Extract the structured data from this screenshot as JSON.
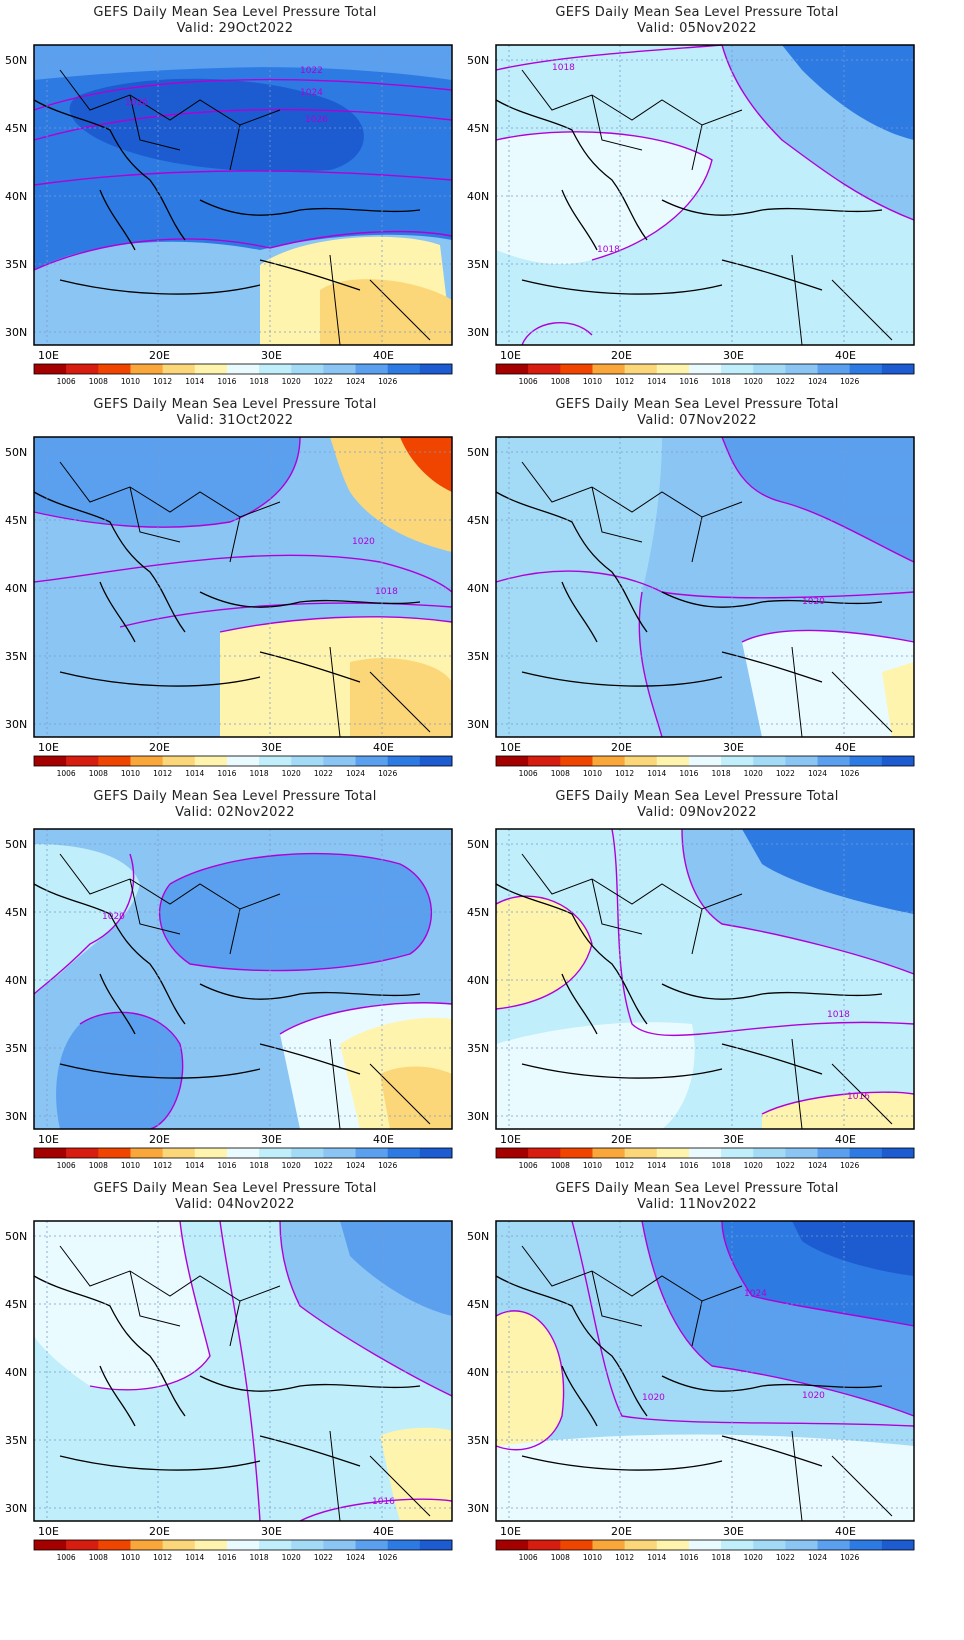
{
  "lat_labels": [
    "50N",
    "45N",
    "40N",
    "35N",
    "30N"
  ],
  "lon_labels": [
    "10E",
    "20E",
    "30E",
    "40E"
  ],
  "colorbar": {
    "ticks": [
      "1006",
      "1008",
      "1010",
      "1012",
      "1014",
      "1016",
      "1018",
      "1020",
      "1022",
      "1024",
      "1026"
    ],
    "colors": [
      "#a50000",
      "#d71c10",
      "#ef4500",
      "#f9a73b",
      "#fbd77a",
      "#fff4ad",
      "#eafbff",
      "#c0eefa",
      "#a3dbf6",
      "#8ac5f4",
      "#5aa0ef",
      "#2d7ae3",
      "#1c5cd0"
    ]
  },
  "contour_color": "#b000d8",
  "panels": [
    {
      "title": "GEFS Daily Mean Sea Level Pressure Total",
      "valid": "Valid: 29Oct2022",
      "contour_labels": [
        "1022",
        "1024",
        "1026",
        "1026"
      ],
      "background": "#2d7ae3"
    },
    {
      "title": "GEFS Daily Mean Sea Level Pressure Total",
      "valid": "Valid: 05Nov2022",
      "contour_labels": [
        "1018",
        "1018"
      ],
      "background": "#c0eefa"
    },
    {
      "title": "GEFS Daily Mean Sea Level Pressure Total",
      "valid": "Valid: 31Oct2022",
      "contour_labels": [
        "1020",
        "1018"
      ],
      "background": "#8ac5f4"
    },
    {
      "title": "GEFS Daily Mean Sea Level Pressure Total",
      "valid": "Valid: 07Nov2022",
      "contour_labels": [
        "1020"
      ],
      "background": "#8ac5f4"
    },
    {
      "title": "GEFS Daily Mean Sea Level Pressure Total",
      "valid": "Valid: 02Nov2022",
      "contour_labels": [
        "1020"
      ],
      "background": "#8ac5f4"
    },
    {
      "title": "GEFS Daily Mean Sea Level Pressure Total",
      "valid": "Valid: 09Nov2022",
      "contour_labels": [
        "1018",
        "1016"
      ],
      "background": "#c0eefa"
    },
    {
      "title": "GEFS Daily Mean Sea Level Pressure Total",
      "valid": "Valid: 04Nov2022",
      "contour_labels": [
        "1016"
      ],
      "background": "#c0eefa"
    },
    {
      "title": "GEFS Daily Mean Sea Level Pressure Total",
      "valid": "Valid: 11Nov2022",
      "contour_labels": [
        "1024",
        "1020",
        "1020"
      ],
      "background": "#a3dbf6"
    }
  ]
}
